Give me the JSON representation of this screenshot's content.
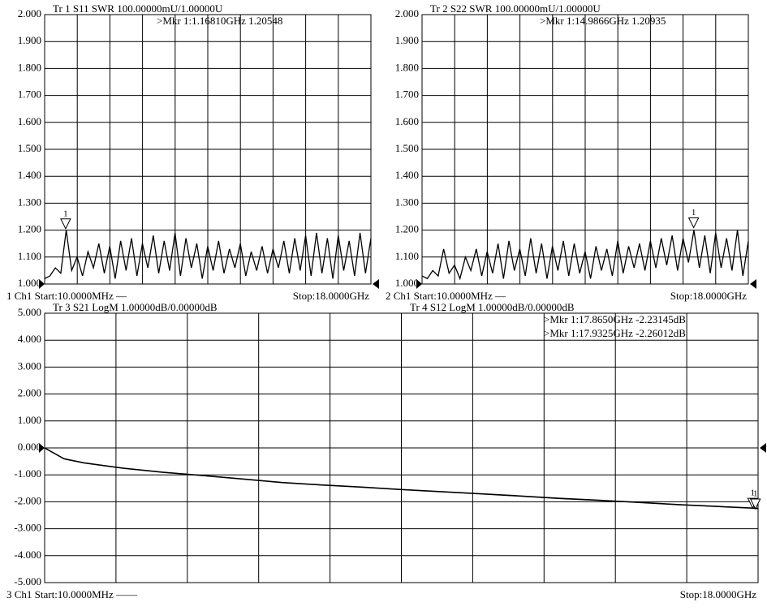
{
  "chart_data": [
    {
      "type": "line",
      "series": [
        {
          "name": "Tr 1  S11 SWR 100.00000mU/1.00000U",
          "color": "#000000",
          "values": [
            1.02,
            1.03,
            1.06,
            1.04,
            1.2,
            1.05,
            1.1,
            1.03,
            1.12,
            1.06,
            1.15,
            1.04,
            1.14,
            1.02,
            1.16,
            1.05,
            1.17,
            1.03,
            1.15,
            1.06,
            1.18,
            1.04,
            1.16,
            1.05,
            1.19,
            1.03,
            1.17,
            1.06,
            1.15,
            1.02,
            1.14,
            1.05,
            1.16,
            1.04,
            1.13,
            1.06,
            1.15,
            1.03,
            1.12,
            1.05,
            1.14,
            1.04,
            1.13,
            1.06,
            1.16,
            1.04,
            1.17,
            1.05,
            1.18,
            1.03,
            1.19,
            1.04,
            1.17,
            1.02,
            1.18,
            1.05,
            1.16,
            1.03,
            1.19,
            1.04,
            1.17
          ]
        }
      ],
      "x": [
        0.01,
        0.3,
        0.6,
        0.9,
        1.2,
        1.5,
        1.8,
        2.1,
        2.4,
        2.7,
        3.0,
        3.3,
        3.6,
        3.9,
        4.2,
        4.5,
        4.8,
        5.1,
        5.4,
        5.7,
        6.0,
        6.3,
        6.6,
        6.9,
        7.2,
        7.5,
        7.8,
        8.1,
        8.4,
        8.7,
        9.0,
        9.3,
        9.6,
        9.9,
        10.2,
        10.5,
        10.8,
        11.1,
        11.4,
        11.7,
        12.0,
        12.3,
        12.6,
        12.9,
        13.2,
        13.5,
        13.8,
        14.1,
        14.4,
        14.7,
        15.0,
        15.3,
        15.6,
        15.9,
        16.2,
        16.5,
        16.8,
        17.1,
        17.4,
        17.7,
        18.0
      ],
      "xlim": [
        0.01,
        18
      ],
      "ylim": [
        1,
        2
      ],
      "yticks": [
        {
          "value": 1,
          "label": "1.000"
        },
        {
          "value": 1.1,
          "label": "1.100"
        },
        {
          "value": 1.2,
          "label": "1.200"
        },
        {
          "value": 1.3,
          "label": "1.300"
        },
        {
          "value": 1.4,
          "label": "1.400"
        },
        {
          "value": 1.5,
          "label": "1.500"
        },
        {
          "value": 1.6,
          "label": "1.600"
        },
        {
          "value": 1.7,
          "label": "1.700"
        },
        {
          "value": 1.8,
          "label": "1.800"
        },
        {
          "value": 1.9,
          "label": "1.900"
        },
        {
          "value": 2,
          "label": "2.000"
        }
      ],
      "grid": true,
      "markers": [
        {
          "label": "1",
          "x": 1.1681,
          "y": 1.20548,
          "text": ">Mkr 1:1.16810GHz 1.20548"
        }
      ],
      "footer_left": "1  Ch1  Start:10.0000MHz —",
      "footer_right": "Stop:18.0000GHz"
    },
    {
      "type": "line",
      "series": [
        {
          "name": "Tr 2  S22 SWR 100.00000mU/1.00000U",
          "color": "#000000",
          "values": [
            1.03,
            1.02,
            1.05,
            1.03,
            1.13,
            1.04,
            1.07,
            1.02,
            1.1,
            1.05,
            1.13,
            1.03,
            1.12,
            1.04,
            1.15,
            1.02,
            1.16,
            1.05,
            1.13,
            1.03,
            1.17,
            1.04,
            1.15,
            1.02,
            1.14,
            1.05,
            1.16,
            1.03,
            1.15,
            1.04,
            1.12,
            1.02,
            1.14,
            1.05,
            1.13,
            1.03,
            1.16,
            1.04,
            1.14,
            1.06,
            1.15,
            1.05,
            1.16,
            1.06,
            1.17,
            1.07,
            1.18,
            1.05,
            1.17,
            1.08,
            1.2,
            1.06,
            1.18,
            1.04,
            1.19,
            1.06,
            1.17,
            1.05,
            1.2,
            1.03,
            1.16
          ]
        }
      ],
      "x": [
        0.01,
        0.3,
        0.6,
        0.9,
        1.2,
        1.5,
        1.8,
        2.1,
        2.4,
        2.7,
        3.0,
        3.3,
        3.6,
        3.9,
        4.2,
        4.5,
        4.8,
        5.1,
        5.4,
        5.7,
        6.0,
        6.3,
        6.6,
        6.9,
        7.2,
        7.5,
        7.8,
        8.1,
        8.4,
        8.7,
        9.0,
        9.3,
        9.6,
        9.9,
        10.2,
        10.5,
        10.8,
        11.1,
        11.4,
        11.7,
        12.0,
        12.3,
        12.6,
        12.9,
        13.2,
        13.5,
        13.8,
        14.1,
        14.4,
        14.7,
        15.0,
        15.3,
        15.6,
        15.9,
        16.2,
        16.5,
        16.8,
        17.1,
        17.4,
        17.7,
        18.0
      ],
      "xlim": [
        0.01,
        18
      ],
      "ylim": [
        1,
        2
      ],
      "yticks": [
        {
          "value": 1,
          "label": "1.000"
        },
        {
          "value": 1.1,
          "label": "1.100"
        },
        {
          "value": 1.2,
          "label": "1.200"
        },
        {
          "value": 1.3,
          "label": "1.300"
        },
        {
          "value": 1.4,
          "label": "1.400"
        },
        {
          "value": 1.5,
          "label": "1.500"
        },
        {
          "value": 1.6,
          "label": "1.600"
        },
        {
          "value": 1.7,
          "label": "1.700"
        },
        {
          "value": 1.8,
          "label": "1.800"
        },
        {
          "value": 1.9,
          "label": "1.900"
        },
        {
          "value": 2,
          "label": "2.000"
        }
      ],
      "grid": true,
      "markers": [
        {
          "label": "1",
          "x": 14.9866,
          "y": 1.20935,
          "text": ">Mkr 1:14.9866GHz 1.20935"
        }
      ],
      "footer_left": "2  Ch1  Start:10.0000MHz —",
      "footer_right": "Stop:18.0000GHz"
    },
    {
      "type": "line",
      "series": [
        {
          "name": "Tr 3  S21 LogM 1.00000dB/0.00000dB",
          "color": "#000000",
          "values": [
            0,
            -0.4,
            -0.55,
            -0.75,
            -0.9,
            -1.02,
            -1.15,
            -1.28,
            -1.37,
            -1.45,
            -1.54,
            -1.62,
            -1.7,
            -1.78,
            -1.87,
            -1.94,
            -2.02,
            -2.1,
            -2.17,
            -2.23,
            -2.24
          ]
        },
        {
          "name": "Tr 4  S12 LogM 1.00000dB/0.00000dB",
          "color": "#000000",
          "values": [
            0,
            -0.41,
            -0.56,
            -0.76,
            -0.91,
            -1.03,
            -1.16,
            -1.29,
            -1.38,
            -1.46,
            -1.55,
            -1.63,
            -1.71,
            -1.79,
            -1.88,
            -1.95,
            -2.03,
            -2.11,
            -2.18,
            -2.24,
            -2.26
          ]
        }
      ],
      "x": [
        0.01,
        0.5,
        1,
        2,
        3,
        4,
        5,
        6,
        7,
        8,
        9,
        10,
        11,
        12,
        13,
        14,
        15,
        16,
        17,
        17.865,
        18
      ],
      "xlim": [
        0.01,
        18
      ],
      "ylim": [
        -5,
        5
      ],
      "yticks": [
        {
          "value": -5,
          "label": "-5.000"
        },
        {
          "value": -4,
          "label": "-4.000"
        },
        {
          "value": -3,
          "label": "-3.000"
        },
        {
          "value": -2,
          "label": "-2.000"
        },
        {
          "value": -1,
          "label": "-1.000"
        },
        {
          "value": 0,
          "label": "0.000"
        },
        {
          "value": 1,
          "label": "1.000"
        },
        {
          "value": 2,
          "label": "2.000"
        },
        {
          "value": 3,
          "label": "3.000"
        },
        {
          "value": 4,
          "label": "4.000"
        },
        {
          "value": 5,
          "label": "5.000"
        }
      ],
      "grid": true,
      "markers": [
        {
          "label": "1",
          "x": 17.865,
          "y": -2.23145,
          "text": ">Mkr 1:17.8650GHz -2.23145dB"
        },
        {
          "label": "1",
          "x": 17.9325,
          "y": -2.26012,
          "text": ">Mkr 1:17.9325GHz -2.26012dB"
        }
      ],
      "footer_left": "3  Ch1  Start:10.0000MHz ——",
      "footer_right": "Stop:18.0000GHz"
    }
  ]
}
